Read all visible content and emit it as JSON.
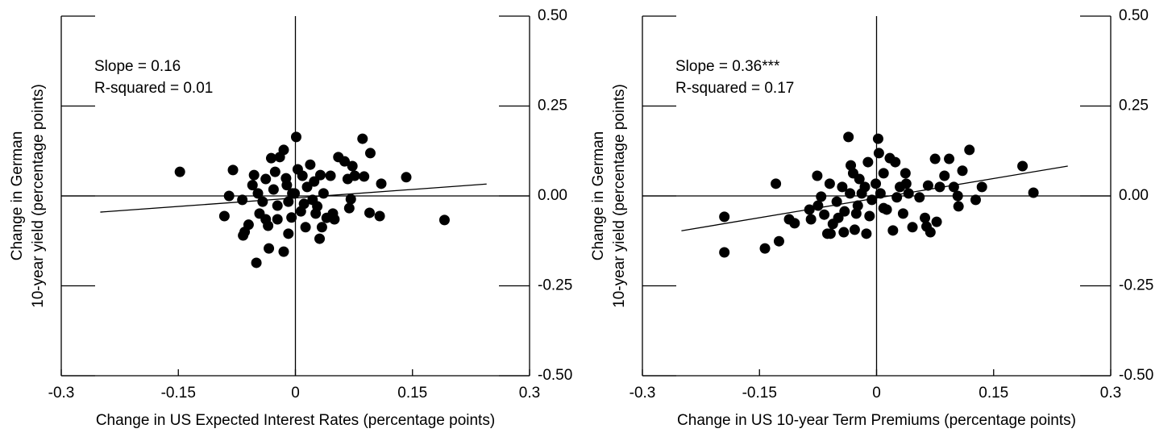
{
  "chart_data": [
    {
      "type": "scatter",
      "color": "#000000",
      "annotations": [
        "Slope = 0.16",
        "R-squared = 0.01"
      ],
      "y_label": [
        "Change in German",
        "10-year yield (percentage points)"
      ],
      "x_label": "Change in US Expected Interest Rates (percentage points)",
      "xlim": [
        -0.3,
        0.3
      ],
      "xticks": [
        -0.3,
        -0.15,
        0,
        0.15,
        0.3
      ],
      "ylim": [
        -0.5,
        0.5
      ],
      "yticks": [
        {
          "value": 0.5,
          "label": "0.50"
        },
        {
          "value": 0.25,
          "label": "0.25"
        },
        {
          "value": 0,
          "label": "0.00"
        },
        {
          "value": -0.25,
          "label": "-0.25"
        },
        {
          "value": -0.5,
          "label": "-0.50"
        }
      ],
      "fit": {
        "x": [
          -0.25,
          0.245
        ],
        "y": [
          -0.045,
          0.033
        ]
      },
      "x": [
        -0.148,
        -0.08,
        -0.085,
        -0.091,
        -0.068,
        -0.067,
        -0.065,
        -0.06,
        -0.05,
        -0.053,
        -0.055,
        -0.048,
        -0.042,
        -0.038,
        -0.034,
        -0.035,
        -0.038,
        -0.031,
        -0.026,
        -0.02,
        -0.015,
        -0.015,
        -0.023,
        -0.028,
        -0.011,
        -0.009,
        -0.009,
        -0.005,
        0.001,
        0.003,
        -0.001,
        0.007,
        0.009,
        0.015,
        0.013,
        0.019,
        0.022,
        0.026,
        0.032,
        0.034,
        0.036,
        0.031,
        0.04,
        0.045,
        0.048,
        0.05,
        0.055,
        0.063,
        0.067,
        0.071,
        0.073,
        0.076,
        0.086,
        0.088,
        0.096,
        0.095,
        0.108,
        0.11,
        0.142,
        0.191,
        -0.012,
        -0.004,
        0.011,
        -0.023,
        0.024,
        -0.046,
        0.028,
        0.069
      ],
      "values": [
        0.067,
        0.072,
        0,
        -0.056,
        -0.011,
        -0.11,
        -0.1,
        -0.08,
        -0.186,
        0.058,
        0.03,
        0.007,
        -0.016,
        -0.065,
        -0.146,
        -0.083,
        0.047,
        0.105,
        0.067,
        0.108,
        0.128,
        -0.155,
        -0.027,
        0.018,
        0.03,
        -0.105,
        -0.016,
        -0.06,
        0.164,
        0.074,
        0.007,
        -0.043,
        0.056,
        0.025,
        -0.087,
        0.087,
        -0.011,
        -0.049,
        0.058,
        -0.087,
        0.007,
        -0.119,
        -0.061,
        0.056,
        -0.049,
        -0.065,
        0.108,
        0.096,
        0.047,
        -0.009,
        0.083,
        0.056,
        0.159,
        0.054,
        0.119,
        -0.047,
        -0.056,
        0.034,
        0.052,
        -0.067,
        0.049,
        0.007,
        -0.022,
        -0.065,
        0.04,
        -0.049,
        -0.029,
        -0.034
      ]
    },
    {
      "type": "scatter",
      "color": "#000000",
      "annotations": [
        "Slope = 0.36***",
        "R-squared = 0.17"
      ],
      "y_label": [
        "Change in German",
        "10-year yield (percentage points)"
      ],
      "x_label": "Change in US 10-year Term Premiums (percentage points)",
      "xlim": [
        -0.3,
        0.3
      ],
      "xticks": [
        -0.3,
        -0.15,
        0,
        0.15,
        0.3
      ],
      "ylim": [
        -0.5,
        0.5
      ],
      "yticks": [
        {
          "value": 0.5,
          "label": "0.50"
        },
        {
          "value": 0.25,
          "label": "0.25"
        },
        {
          "value": 0,
          "label": "0.00"
        },
        {
          "value": -0.25,
          "label": "-0.25"
        },
        {
          "value": -0.5,
          "label": "-0.50"
        }
      ],
      "fit": {
        "x": [
          -0.25,
          0.245
        ],
        "y": [
          -0.097,
          0.083
        ]
      },
      "x": [
        -0.195,
        -0.195,
        -0.143,
        -0.129,
        -0.125,
        -0.112,
        -0.105,
        -0.086,
        -0.084,
        -0.076,
        -0.071,
        -0.067,
        -0.063,
        -0.06,
        -0.056,
        -0.051,
        -0.049,
        -0.044,
        -0.041,
        -0.036,
        -0.033,
        -0.034,
        -0.03,
        -0.028,
        -0.024,
        -0.022,
        -0.019,
        -0.015,
        -0.013,
        -0.011,
        -0.009,
        -0.006,
        -0.001,
        0.002,
        0.003,
        0.005,
        0.009,
        0.013,
        0.017,
        0.021,
        0.024,
        0.026,
        0.03,
        0.034,
        0.037,
        0.041,
        0.046,
        0.055,
        0.062,
        0.064,
        0.066,
        0.069,
        0.075,
        0.077,
        0.081,
        0.087,
        0.093,
        0.099,
        0.104,
        0.105,
        0.11,
        0.119,
        0.127,
        0.135,
        0.187,
        0.201,
        -0.059,
        -0.042,
        0.009,
        0.038,
        -0.026,
        -0.075
      ],
      "values": [
        -0.058,
        -0.157,
        -0.146,
        0.034,
        -0.126,
        -0.065,
        -0.076,
        -0.038,
        -0.065,
        0.056,
        -0.002,
        -0.052,
        -0.105,
        0.034,
        -0.078,
        -0.016,
        -0.061,
        0.025,
        -0.043,
        0.164,
        0.085,
        0.007,
        0.063,
        -0.094,
        -0.027,
        0.047,
        0.007,
        0.025,
        -0.105,
        0.094,
        -0.056,
        -0.011,
        0.034,
        0.159,
        0.119,
        0.007,
        0.063,
        -0.038,
        0.105,
        -0.096,
        0.094,
        -0.004,
        0.025,
        -0.049,
        0.063,
        0.007,
        -0.087,
        -0.004,
        -0.061,
        -0.085,
        0.029,
        -0.101,
        0.103,
        -0.072,
        0.025,
        0.056,
        0.103,
        0.025,
        0,
        -0.029,
        0.07,
        0.128,
        -0.011,
        0.025,
        0.083,
        0.009,
        -0.105,
        -0.101,
        -0.034,
        0.034,
        -0.049,
        -0.027
      ]
    }
  ]
}
